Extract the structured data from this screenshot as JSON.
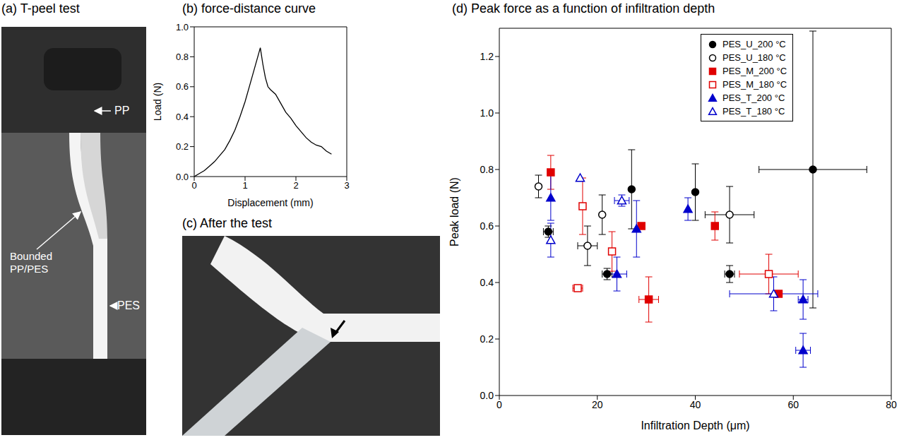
{
  "chart_data": [
    {
      "type": "image",
      "title": "(a) T-peel test",
      "annotations": [
        "PP",
        "Bounded PP/PES",
        "PES"
      ]
    },
    {
      "type": "line",
      "title": "(b) force-distance curve",
      "xlabel": "Displacement (mm)",
      "ylabel": "Load (N)",
      "x": [
        0,
        0.1,
        0.2,
        0.3,
        0.4,
        0.5,
        0.6,
        0.7,
        0.8,
        0.9,
        1.0,
        1.1,
        1.2,
        1.25,
        1.3,
        1.35,
        1.4,
        1.45,
        1.5,
        1.6,
        1.7,
        1.8,
        1.9,
        2.0,
        2.1,
        2.2,
        2.3,
        2.4,
        2.5,
        2.6,
        2.7
      ],
      "values": [
        0.0,
        0.02,
        0.04,
        0.07,
        0.1,
        0.14,
        0.18,
        0.24,
        0.31,
        0.4,
        0.5,
        0.62,
        0.74,
        0.8,
        0.86,
        0.75,
        0.66,
        0.6,
        0.58,
        0.55,
        0.49,
        0.43,
        0.39,
        0.34,
        0.3,
        0.26,
        0.23,
        0.21,
        0.2,
        0.17,
        0.15
      ],
      "color": "#000000",
      "xlim": [
        0,
        3
      ],
      "xticks": [
        0,
        1,
        2,
        3
      ],
      "ylim": [
        0,
        1
      ],
      "yticks": [
        {
          "value": 0,
          "label": "0.0"
        },
        0.2,
        0.4,
        0.6,
        0.8,
        {
          "value": 1,
          "label": "1.0"
        }
      ]
    },
    {
      "type": "image",
      "title": "(c) After the test"
    },
    {
      "type": "scatter",
      "title": "(d) Peak force as a function of infiltration depth",
      "xlabel": "Infiltration Depth (μm)",
      "ylabel": "Peak load (N)",
      "xlim": [
        0,
        80
      ],
      "xticks": [
        0,
        20,
        40,
        60,
        80
      ],
      "ylim": [
        0,
        1.3
      ],
      "yticks": [
        {
          "value": 0,
          "label": "0.0"
        },
        0.2,
        0.4,
        0.6,
        0.8,
        {
          "value": 1,
          "label": "1.0"
        },
        1.2
      ],
      "legend": "upper center",
      "series": [
        {
          "name": "PES_U_200 °C",
          "color": "#000000",
          "marker": "circle",
          "x": [
            10,
            22,
            27,
            40,
            47,
            64
          ],
          "values": [
            0.58,
            0.43,
            0.73,
            0.72,
            0.43,
            0.8
          ],
          "x_error": [
            1,
            1,
            0,
            0,
            1,
            11
          ],
          "y_error": [
            0.02,
            0.02,
            0.14,
            0.1,
            0.03,
            0.49
          ]
        },
        {
          "name": "PES_U_180 °C",
          "color": "#000000",
          "marker": "circle-open",
          "x": [
            8,
            18,
            21,
            47
          ],
          "values": [
            0.74,
            0.53,
            0.64,
            0.64
          ],
          "x_error": [
            0,
            2,
            0,
            5
          ],
          "y_error": [
            0.04,
            0.07,
            0.07,
            0.1
          ]
        },
        {
          "name": "PES_M_200 °C",
          "color": "#e00000",
          "marker": "square",
          "x": [
            10.5,
            29,
            30.5,
            44,
            57
          ],
          "values": [
            0.79,
            0.6,
            0.34,
            0.6,
            0.36
          ],
          "x_error": [
            0,
            0,
            2,
            0,
            0
          ],
          "y_error": [
            0.06,
            0,
            0.08,
            0.05,
            0
          ]
        },
        {
          "name": "PES_M_180 °C",
          "color": "#e00000",
          "marker": "square-open",
          "x": [
            16,
            17,
            23,
            55
          ],
          "values": [
            0.38,
            0.67,
            0.51,
            0.43
          ],
          "x_error": [
            1,
            0,
            0,
            6
          ],
          "y_error": [
            0.01,
            0.1,
            0.07,
            0.07
          ]
        },
        {
          "name": "PES_T_200 °C",
          "color": "#0000cc",
          "marker": "triangle",
          "x": [
            10.5,
            24,
            28,
            38.5,
            62,
            62
          ],
          "values": [
            0.7,
            0.43,
            0.59,
            0.66,
            0.34,
            0.16
          ],
          "x_error": [
            0,
            2,
            0,
            0,
            1,
            1.5
          ],
          "y_error": [
            0.08,
            0.06,
            0.1,
            0.04,
            0.07,
            0.06
          ]
        },
        {
          "name": "PES_T_180 °C",
          "color": "#0000cc",
          "marker": "triangle-open",
          "x": [
            10.5,
            16.5,
            25,
            56
          ],
          "values": [
            0.55,
            0.77,
            0.69,
            0.36
          ],
          "x_error": [
            0,
            0,
            1.5,
            9
          ],
          "y_error": [
            0.06,
            0,
            0.02,
            0.06
          ]
        }
      ]
    }
  ]
}
